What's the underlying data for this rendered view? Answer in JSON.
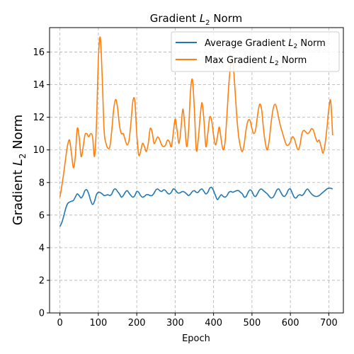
{
  "chart_data": {
    "type": "line",
    "title_main": "Gradient ",
    "title_math": "L",
    "title_sub": "2",
    "title_tail": " Norm",
    "xlabel": "Epoch",
    "ylabel_main": "Gradient ",
    "ylabel_math": "L",
    "ylabel_sub": "2",
    "ylabel_tail": " Norm",
    "xlim": [
      -27,
      738
    ],
    "ylim": [
      0,
      17.5
    ],
    "xticks": [
      0,
      100,
      200,
      300,
      400,
      500,
      600,
      700
    ],
    "yticks": [
      0,
      2,
      4,
      6,
      8,
      10,
      12,
      14,
      16
    ],
    "grid": true,
    "legend_position": "top-right",
    "series": [
      {
        "name_main": "Average Gradient ",
        "name_math": "L",
        "name_sub": "2",
        "name_tail": " Norm",
        "color": "#1f77b4",
        "x": [
          0,
          5,
          10,
          15,
          20,
          25,
          30,
          35,
          40,
          45,
          50,
          55,
          60,
          65,
          70,
          75,
          80,
          85,
          90,
          95,
          100,
          105,
          110,
          115,
          120,
          125,
          130,
          135,
          140,
          145,
          150,
          155,
          160,
          165,
          170,
          175,
          180,
          185,
          190,
          195,
          200,
          205,
          210,
          215,
          220,
          225,
          230,
          235,
          240,
          245,
          250,
          255,
          260,
          265,
          270,
          275,
          280,
          285,
          290,
          295,
          300,
          305,
          310,
          315,
          320,
          325,
          330,
          335,
          340,
          345,
          350,
          355,
          360,
          365,
          370,
          375,
          380,
          385,
          390,
          395,
          400,
          405,
          410,
          415,
          420,
          425,
          430,
          435,
          440,
          445,
          450,
          455,
          460,
          465,
          470,
          475,
          480,
          485,
          490,
          495,
          500,
          505,
          510,
          515,
          520,
          525,
          530,
          535,
          540,
          545,
          550,
          555,
          560,
          565,
          570,
          575,
          580,
          585,
          590,
          595,
          600,
          605,
          610,
          615,
          620,
          625,
          630,
          635,
          640,
          645,
          650,
          655,
          660,
          665,
          670,
          675,
          680,
          685,
          690,
          695,
          700,
          705,
          710
        ],
        "y": [
          5.3,
          5.55,
          5.95,
          6.4,
          6.7,
          6.8,
          6.85,
          6.9,
          7.1,
          7.3,
          7.2,
          7.05,
          7.2,
          7.5,
          7.55,
          7.3,
          6.9,
          6.65,
          6.85,
          7.25,
          7.4,
          7.38,
          7.3,
          7.2,
          7.22,
          7.25,
          7.2,
          7.3,
          7.55,
          7.6,
          7.45,
          7.3,
          7.1,
          7.2,
          7.4,
          7.5,
          7.35,
          7.2,
          7.1,
          7.2,
          7.45,
          7.4,
          7.2,
          7.1,
          7.15,
          7.25,
          7.25,
          7.2,
          7.2,
          7.35,
          7.55,
          7.6,
          7.5,
          7.45,
          7.55,
          7.5,
          7.35,
          7.3,
          7.4,
          7.6,
          7.55,
          7.4,
          7.35,
          7.4,
          7.45,
          7.4,
          7.3,
          7.2,
          7.3,
          7.45,
          7.5,
          7.4,
          7.4,
          7.55,
          7.6,
          7.45,
          7.3,
          7.4,
          7.65,
          7.7,
          7.5,
          7.2,
          6.95,
          7.1,
          7.25,
          7.15,
          7.1,
          7.2,
          7.4,
          7.45,
          7.4,
          7.45,
          7.5,
          7.5,
          7.4,
          7.3,
          7.1,
          7.15,
          7.4,
          7.55,
          7.45,
          7.2,
          7.15,
          7.35,
          7.55,
          7.6,
          7.5,
          7.4,
          7.3,
          7.15,
          7.05,
          7.1,
          7.3,
          7.55,
          7.6,
          7.4,
          7.2,
          7.15,
          7.3,
          7.55,
          7.6,
          7.35,
          7.1,
          7.05,
          7.2,
          7.25,
          7.2,
          7.3,
          7.5,
          7.6,
          7.45,
          7.3,
          7.2,
          7.15,
          7.15,
          7.2,
          7.3,
          7.4,
          7.5,
          7.6,
          7.65,
          7.65,
          7.6
        ]
      },
      {
        "name_main": "Max Gradient ",
        "name_math": "L",
        "name_sub": "2",
        "name_tail": " Norm",
        "color": "#ff7f0e",
        "x": [
          0,
          5,
          10,
          15,
          20,
          25,
          30,
          35,
          40,
          45,
          50,
          55,
          60,
          65,
          70,
          75,
          80,
          85,
          90,
          95,
          100,
          105,
          110,
          115,
          120,
          125,
          130,
          135,
          140,
          145,
          150,
          155,
          160,
          165,
          170,
          175,
          180,
          185,
          190,
          195,
          200,
          205,
          210,
          215,
          220,
          225,
          230,
          235,
          240,
          245,
          250,
          255,
          260,
          265,
          270,
          275,
          280,
          285,
          290,
          295,
          300,
          305,
          310,
          315,
          320,
          325,
          330,
          335,
          340,
          345,
          350,
          355,
          360,
          365,
          370,
          375,
          380,
          385,
          390,
          395,
          400,
          405,
          410,
          415,
          420,
          425,
          430,
          435,
          440,
          445,
          450,
          455,
          460,
          465,
          470,
          475,
          480,
          485,
          490,
          495,
          500,
          505,
          510,
          515,
          520,
          525,
          530,
          535,
          540,
          545,
          550,
          555,
          560,
          565,
          570,
          575,
          580,
          585,
          590,
          595,
          600,
          605,
          610,
          615,
          620,
          625,
          630,
          635,
          640,
          645,
          650,
          655,
          660,
          665,
          670,
          675,
          680,
          685,
          690,
          695,
          700,
          705,
          710
        ],
        "y": [
          7.1,
          7.8,
          8.6,
          9.5,
          10.3,
          10.6,
          9.8,
          8.9,
          9.6,
          11.3,
          10.8,
          9.6,
          10.1,
          10.9,
          11.0,
          10.8,
          11.0,
          10.8,
          9.6,
          11.5,
          15.5,
          16.9,
          14.5,
          11.2,
          10.4,
          10.1,
          10.2,
          11.2,
          12.5,
          13.1,
          12.6,
          11.5,
          11.0,
          11.0,
          10.6,
          10.3,
          10.6,
          11.7,
          13.0,
          13.0,
          11.0,
          9.7,
          9.9,
          10.4,
          10.2,
          9.9,
          10.4,
          11.3,
          11.1,
          10.4,
          10.6,
          10.8,
          10.6,
          10.3,
          10.2,
          10.3,
          10.6,
          10.5,
          10.2,
          11.0,
          11.9,
          11.2,
          10.4,
          11.3,
          12.5,
          11.5,
          10.2,
          11.2,
          13.6,
          14.3,
          12.5,
          10.0,
          10.6,
          12.0,
          12.9,
          11.8,
          10.2,
          11.0,
          12.0,
          11.8,
          10.9,
          10.3,
          10.8,
          11.4,
          10.6,
          10.0,
          10.5,
          12.2,
          14.1,
          15.3,
          15.5,
          14.0,
          12.2,
          10.9,
          10.2,
          9.9,
          10.4,
          11.3,
          11.8,
          11.8,
          11.3,
          11.0,
          11.3,
          12.2,
          12.8,
          12.5,
          11.3,
          10.4,
          10.0,
          10.6,
          11.7,
          12.5,
          12.8,
          12.5,
          11.9,
          11.4,
          11.0,
          10.6,
          10.3,
          10.3,
          10.5,
          10.8,
          10.7,
          10.3,
          10.0,
          10.3,
          11.0,
          11.2,
          11.1,
          11.0,
          11.1,
          11.3,
          11.2,
          10.8,
          10.5,
          10.6,
          10.2,
          9.8,
          10.3,
          11.3,
          12.5,
          13.0,
          10.9
        ]
      }
    ]
  }
}
